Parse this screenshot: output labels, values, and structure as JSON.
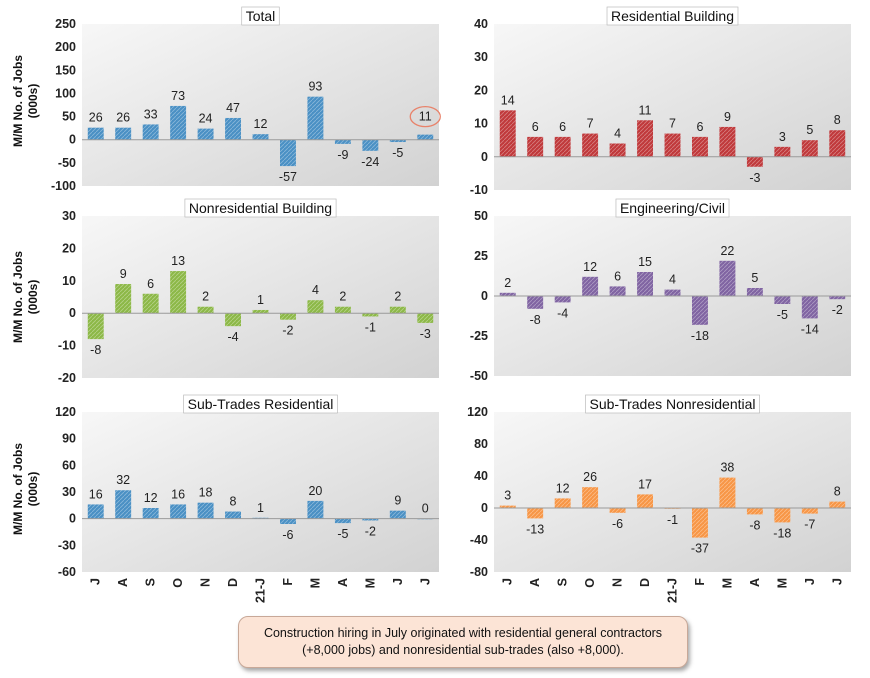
{
  "colors": {
    "total": "#4a90c4",
    "residential": "#c0393b",
    "nonresidential": "#8cb847",
    "engineering": "#8064a2",
    "subres": "#4a90c4",
    "subnonres": "#f79646",
    "highlight": "#e8826a"
  },
  "y_axis_label_lines": [
    "M/M No. of Jobs",
    "(000s)"
  ],
  "caption": "Construction hiring in July originated with residential general contractors (+8,000 jobs) and nonresidential sub-trades (also +8,000).",
  "chart_data": [
    {
      "id": "total",
      "type": "bar",
      "title": "Total",
      "categories": [
        "J",
        "A",
        "S",
        "O",
        "N",
        "D",
        "21-J",
        "F",
        "M",
        "A",
        "M",
        "J",
        "J"
      ],
      "values": [
        26,
        26,
        33,
        73,
        24,
        47,
        12,
        -57,
        93,
        -9,
        -24,
        -5,
        11
      ],
      "ylim": [
        -100,
        250
      ],
      "yticks": [
        -100,
        -50,
        0,
        50,
        100,
        150,
        200,
        250
      ],
      "ylabel": "M/M No. of Jobs (000s)",
      "highlight_index": 12
    },
    {
      "id": "residential",
      "type": "bar",
      "title": "Residential Building",
      "categories": [
        "J",
        "A",
        "S",
        "O",
        "N",
        "D",
        "21-J",
        "F",
        "M",
        "A",
        "M",
        "J",
        "J"
      ],
      "values": [
        14,
        6,
        6,
        7,
        4,
        11,
        7,
        6,
        9,
        -3,
        3,
        5,
        8
      ],
      "ylim": [
        -10,
        40
      ],
      "yticks": [
        -10,
        0,
        10,
        20,
        30,
        40
      ],
      "ylabel": ""
    },
    {
      "id": "nonresidential",
      "type": "bar",
      "title": "Nonresidential Building",
      "categories": [
        "J",
        "A",
        "S",
        "O",
        "N",
        "D",
        "21-J",
        "F",
        "M",
        "A",
        "M",
        "J",
        "J"
      ],
      "values": [
        -8,
        9,
        6,
        13,
        2,
        -4,
        1,
        -2,
        4,
        2,
        -1,
        2,
        -3
      ],
      "ylim": [
        -20,
        30
      ],
      "yticks": [
        -20,
        -10,
        0,
        10,
        20,
        30
      ],
      "ylabel": "M/M No. of Jobs (000s)"
    },
    {
      "id": "engineering",
      "type": "bar",
      "title": "Engineering/Civil",
      "categories": [
        "J",
        "A",
        "S",
        "O",
        "N",
        "D",
        "21-J",
        "F",
        "M",
        "A",
        "M",
        "J",
        "J"
      ],
      "values": [
        2,
        -8,
        -4,
        12,
        6,
        15,
        4,
        -18,
        22,
        5,
        -5,
        -14,
        -2
      ],
      "ylim": [
        -50,
        50
      ],
      "yticks": [
        -50,
        -25,
        0,
        25,
        50
      ],
      "ylabel": ""
    },
    {
      "id": "subres",
      "type": "bar",
      "title": "Sub-Trades Residential",
      "categories": [
        "J",
        "A",
        "S",
        "O",
        "N",
        "D",
        "21-J",
        "F",
        "M",
        "A",
        "M",
        "J",
        "J"
      ],
      "values": [
        16,
        32,
        12,
        16,
        18,
        8,
        1,
        -6,
        20,
        -5,
        -2,
        9,
        0
      ],
      "ylim": [
        -60,
        120
      ],
      "yticks": [
        -60,
        -30,
        0,
        30,
        60,
        90,
        120
      ],
      "ylabel": "M/M No. of Jobs (000s)",
      "show_xticks": true
    },
    {
      "id": "subnonres",
      "type": "bar",
      "title": "Sub-Trades Nonresidential",
      "categories": [
        "J",
        "A",
        "S",
        "O",
        "N",
        "D",
        "21-J",
        "F",
        "M",
        "A",
        "M",
        "J",
        "J"
      ],
      "values": [
        3,
        -13,
        12,
        26,
        -6,
        17,
        -1,
        -37,
        38,
        -8,
        -18,
        -7,
        8
      ],
      "ylim": [
        -80,
        120
      ],
      "yticks": [
        -80,
        -40,
        0,
        40,
        80,
        120
      ],
      "ylabel": "",
      "show_xticks": true
    }
  ]
}
